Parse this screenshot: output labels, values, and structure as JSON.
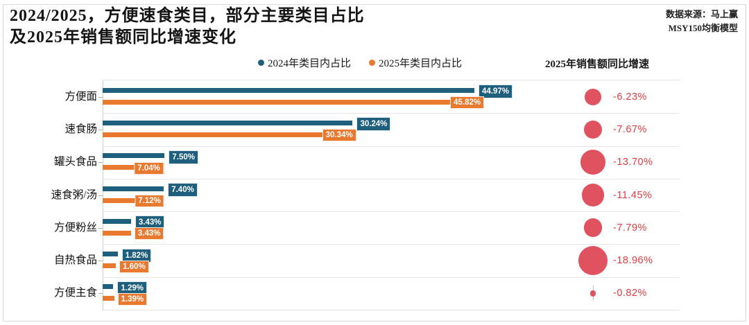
{
  "header": {
    "title_line1": "2024/2025，方便速食类目，部分主要类目占比",
    "title_line2": "及2025年销售额同比增速变化",
    "source_line1": "数据来源：马上赢",
    "source_line2": "MSY150均衡模型"
  },
  "legend": {
    "items": [
      {
        "label": "2024年类目内占比",
        "color": "#1F5F7E"
      },
      {
        "label": "2025年类目内占比",
        "color": "#E9792F"
      }
    ]
  },
  "growth_header": "2025年销售额同比增速",
  "chart_data": {
    "type": "bar",
    "orientation": "horizontal",
    "title": "2024/2025，方便速食类目，部分主要类目占比及2025年销售额同比增速变化",
    "categories": [
      "方便面",
      "速食肠",
      "罐头食品",
      "速食粥/汤",
      "方便粉丝",
      "自热食品",
      "方便主食"
    ],
    "series": [
      {
        "name": "2024年类目内占比",
        "color": "#1F5F7E",
        "values": [
          44.97,
          30.24,
          7.5,
          7.4,
          3.43,
          1.82,
          1.29
        ],
        "labels": [
          "44.97%",
          "30.24%",
          "7.50%",
          "7.40%",
          "3.43%",
          "1.82%",
          "1.29%"
        ]
      },
      {
        "name": "2025年类目内占比",
        "color": "#E9792F",
        "values": [
          45.82,
          30.34,
          7.04,
          7.12,
          3.43,
          1.6,
          1.39
        ],
        "labels": [
          "45.82%",
          "30.34%",
          "7.04%",
          "7.12%",
          "3.43%",
          "1.60%",
          "1.39%"
        ]
      }
    ],
    "bubble_series": {
      "name": "2025年销售额同比增速",
      "values": [
        -6.23,
        -7.67,
        -13.7,
        -11.45,
        -7.79,
        -18.96,
        -0.82
      ],
      "labels": [
        "-6.23%",
        "-7.67%",
        "-13.70%",
        "-11.45%",
        "-7.79%",
        "-18.96%",
        "-0.82%"
      ],
      "bubble_color": "#E0525F",
      "label_color": "#E23B40"
    },
    "xlim": [
      0,
      50
    ],
    "grid": "row-separators",
    "legend_position": "top"
  },
  "colors": {
    "blue": "#1F5F7E",
    "orange": "#E9792F",
    "bubble_red": "#E0525F",
    "text_red": "#E23B40",
    "axis": "#CFCFCF",
    "separator": "#E6E6E6",
    "border": "#D9D9D9"
  }
}
